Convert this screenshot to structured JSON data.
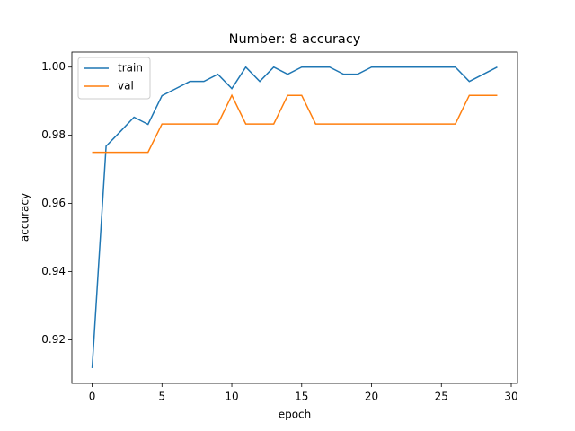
{
  "chart_data": {
    "type": "line",
    "title": "Number: 8 accuracy",
    "x_label": "epoch",
    "y_label": "accuracy",
    "x": [
      0,
      1,
      2,
      3,
      4,
      5,
      6,
      7,
      8,
      9,
      10,
      11,
      12,
      13,
      14,
      15,
      16,
      17,
      18,
      19,
      20,
      21,
      22,
      23,
      24,
      25,
      26,
      27,
      28,
      29
    ],
    "series": [
      {
        "name": "train",
        "color": "#1f77b4",
        "values": [
          0.9117,
          0.9768,
          0.981,
          0.9853,
          0.9832,
          0.9916,
          0.9937,
          0.9958,
          0.9958,
          0.9979,
          0.9937,
          1.0,
          0.9958,
          1.0,
          0.9979,
          1.0,
          1.0,
          1.0,
          0.9979,
          0.9979,
          1.0,
          1.0,
          1.0,
          1.0,
          1.0,
          1.0,
          1.0,
          0.9958,
          0.9979,
          1.0
        ]
      },
      {
        "name": "val",
        "color": "#ff7f0e",
        "values": [
          0.975,
          0.975,
          0.975,
          0.975,
          0.975,
          0.9833,
          0.9833,
          0.9833,
          0.9833,
          0.9833,
          0.9917,
          0.9833,
          0.9833,
          0.9833,
          0.9917,
          0.9917,
          0.9833,
          0.9833,
          0.9833,
          0.9833,
          0.9833,
          0.9833,
          0.9833,
          0.9833,
          0.9833,
          0.9833,
          0.9833,
          0.9917,
          0.9917,
          0.9917
        ]
      }
    ],
    "xlim": [
      -1.45,
      30.45
    ],
    "ylim": [
      0.9072,
      1.0044
    ],
    "xticks": [
      0,
      5,
      10,
      15,
      20,
      25,
      30
    ],
    "yticks": [
      0.92,
      0.94,
      0.96,
      0.98,
      {
        "value": 1,
        "label": "1.00"
      }
    ],
    "grid": false,
    "legend": "upper-left"
  }
}
